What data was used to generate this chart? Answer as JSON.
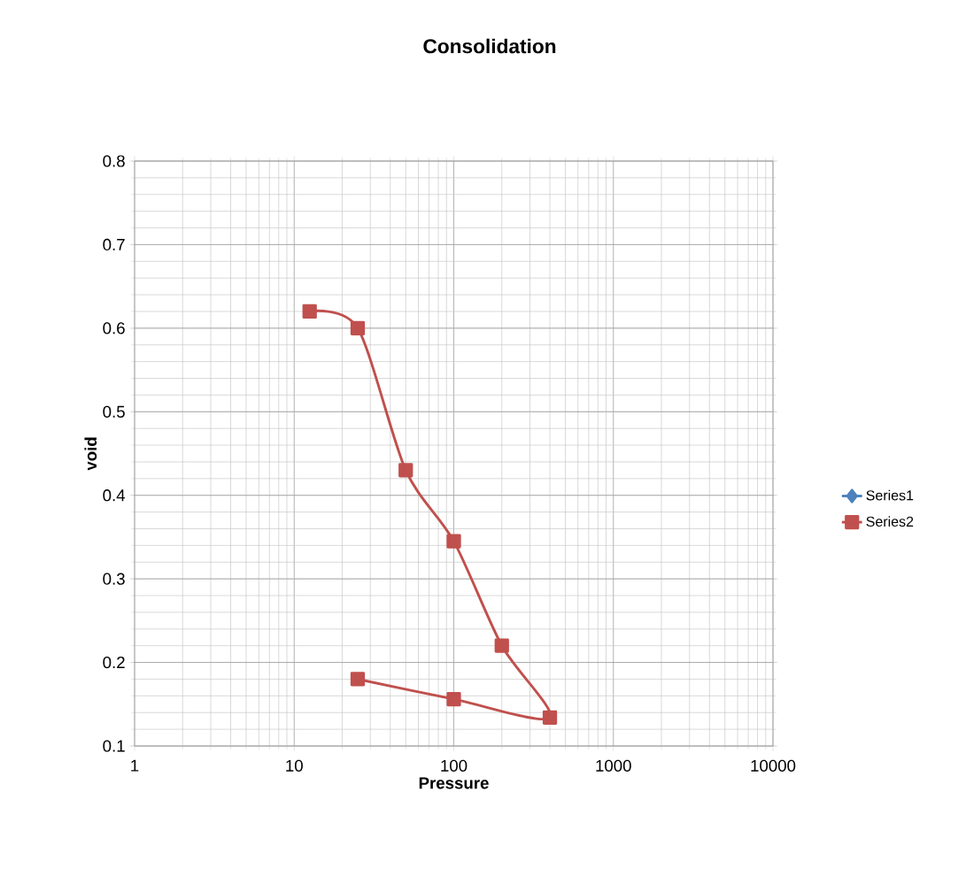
{
  "chart_data": {
    "type": "line",
    "title": "Consolidation",
    "xlabel": "Pressure",
    "ylabel": "void",
    "log": "x",
    "grid": true,
    "legend": "right",
    "line_style": "solid",
    "xlim": [
      1,
      10000
    ],
    "xticks": [
      1,
      10,
      100,
      1000,
      10000
    ],
    "ylim": [
      0.1,
      0.8
    ],
    "yticks": [
      0.1,
      0.2,
      0.3,
      0.4,
      0.5,
      0.6,
      0.7,
      0.8
    ],
    "series": [
      {
        "name": "Series1",
        "color": "#4f81bd",
        "marker": "diamond"
      },
      {
        "name": "Series2",
        "color": "#c0504d",
        "marker": "square",
        "x": [
          12.5,
          25,
          50,
          100,
          200,
          400,
          100,
          25
        ],
        "values": [
          0.62,
          0.6,
          0.43,
          0.345,
          0.22,
          0.134,
          0.156,
          0.18
        ]
      }
    ]
  }
}
